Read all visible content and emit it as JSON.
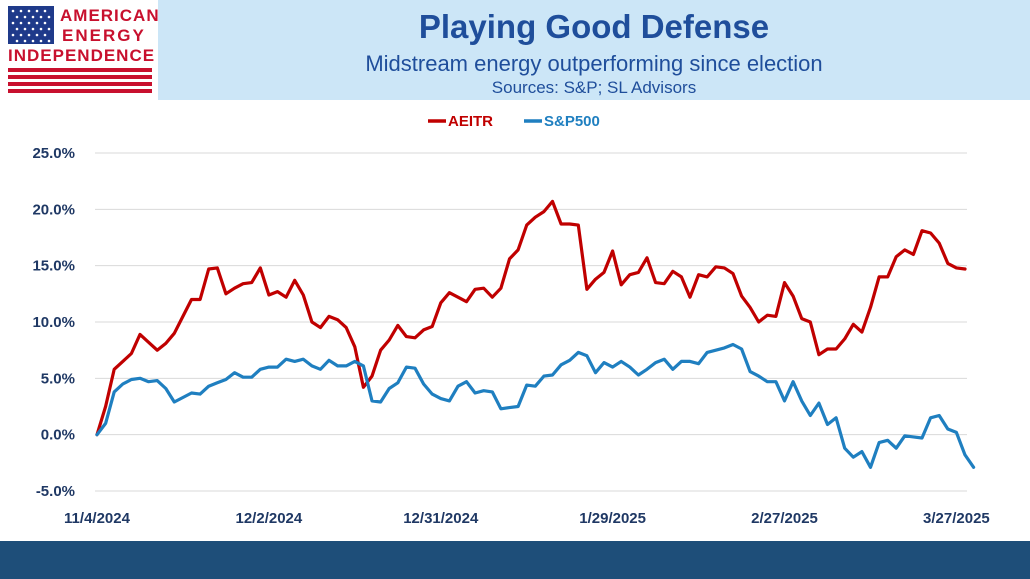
{
  "header": {
    "title": "Playing Good Defense",
    "subtitle": "Midstream energy outperforming since election",
    "sources": "Sources: S&P; SL Advisors"
  },
  "logo": {
    "line1": "AMERICAN",
    "line2": "ENERGY",
    "line3": "INDEPENDENCE"
  },
  "colors": {
    "aeitr": "#c00000",
    "sp500": "#1f7fc0",
    "title": "#1f4e9b",
    "header_band": "#cce6f7",
    "footer_band": "#1e4e79"
  },
  "chart_data": {
    "type": "line",
    "title": "",
    "xlabel": "",
    "ylabel": "",
    "ylim": [
      -5,
      25
    ],
    "yticks": [
      -5,
      0,
      5,
      10,
      15,
      20,
      25
    ],
    "ytick_labels": [
      "-5.0%",
      "0.0%",
      "5.0%",
      "10.0%",
      "15.0%",
      "20.0%",
      "25.0%"
    ],
    "xticks": [
      {
        "index": 0,
        "label": "11/4/2024"
      },
      {
        "index": 20,
        "label": "12/2/2024"
      },
      {
        "index": 40,
        "label": "12/31/2024"
      },
      {
        "index": 60,
        "label": "1/29/2025"
      },
      {
        "index": 80,
        "label": "2/27/2025"
      },
      {
        "index": 100,
        "label": "3/27/2025"
      }
    ],
    "grid": true,
    "legend_position": "top-center",
    "series": [
      {
        "name": "AEITR",
        "color": "#c00000",
        "values": [
          0,
          2.5,
          5.8,
          6.5,
          7.2,
          8.9,
          8.2,
          7.5,
          8.1,
          9.0,
          10.5,
          12.0,
          12.0,
          14.7,
          14.8,
          12.5,
          13.0,
          13.4,
          13.5,
          14.8,
          12.4,
          12.7,
          12.2,
          13.7,
          12.4,
          10.0,
          9.5,
          10.5,
          10.2,
          9.5,
          7.8,
          4.2,
          5.2,
          7.5,
          8.4,
          9.7,
          8.7,
          8.6,
          9.3,
          9.6,
          11.7,
          12.6,
          12.2,
          11.8,
          12.9,
          13.0,
          12.2,
          13.0,
          15.6,
          16.4,
          18.6,
          19.3,
          19.8,
          20.7,
          18.7,
          18.7,
          18.6,
          12.9,
          13.8,
          14.4,
          16.3,
          13.3,
          14.2,
          14.4,
          15.7,
          13.5,
          13.4,
          14.5,
          14.0,
          12.2,
          14.2,
          14.0,
          14.9,
          14.8,
          14.3,
          12.3,
          11.3,
          10.0,
          10.6,
          10.5,
          13.5,
          12.3,
          10.3,
          10.0,
          7.1,
          7.6,
          7.6,
          8.5,
          9.8,
          9.1,
          11.3,
          14.0,
          14.0,
          15.8,
          16.4,
          16.0,
          18.1,
          17.9,
          17.0,
          15.2,
          14.8,
          14.7
        ]
      },
      {
        "name": "S&P500",
        "color": "#1f7fc0",
        "values": [
          0,
          1.0,
          3.8,
          4.5,
          4.9,
          5.0,
          4.7,
          4.8,
          4.1,
          2.9,
          3.3,
          3.7,
          3.6,
          4.3,
          4.6,
          4.9,
          5.5,
          5.1,
          5.1,
          5.8,
          6.0,
          6.0,
          6.7,
          6.5,
          6.7,
          6.1,
          5.8,
          6.6,
          6.1,
          6.1,
          6.5,
          6.1,
          3.0,
          2.9,
          4.1,
          4.6,
          6.0,
          5.9,
          4.5,
          3.6,
          3.2,
          3.0,
          4.3,
          4.7,
          3.7,
          3.9,
          3.8,
          2.3,
          2.4,
          2.5,
          4.4,
          4.3,
          5.2,
          5.3,
          6.2,
          6.6,
          7.3,
          7.0,
          5.5,
          6.4,
          6.0,
          6.5,
          6.0,
          5.3,
          5.8,
          6.4,
          6.7,
          5.8,
          6.5,
          6.5,
          6.3,
          7.3,
          7.5,
          7.7,
          8.0,
          7.6,
          5.6,
          5.2,
          4.7,
          4.7,
          3.0,
          4.7,
          3.0,
          1.7,
          2.8,
          0.9,
          1.5,
          -1.2,
          -2.0,
          -1.5,
          -2.9,
          -0.7,
          -0.5,
          -1.2,
          -0.1,
          -0.2,
          -0.3,
          1.5,
          1.7,
          0.5,
          0.2,
          -1.8,
          -2.9
        ]
      }
    ]
  }
}
